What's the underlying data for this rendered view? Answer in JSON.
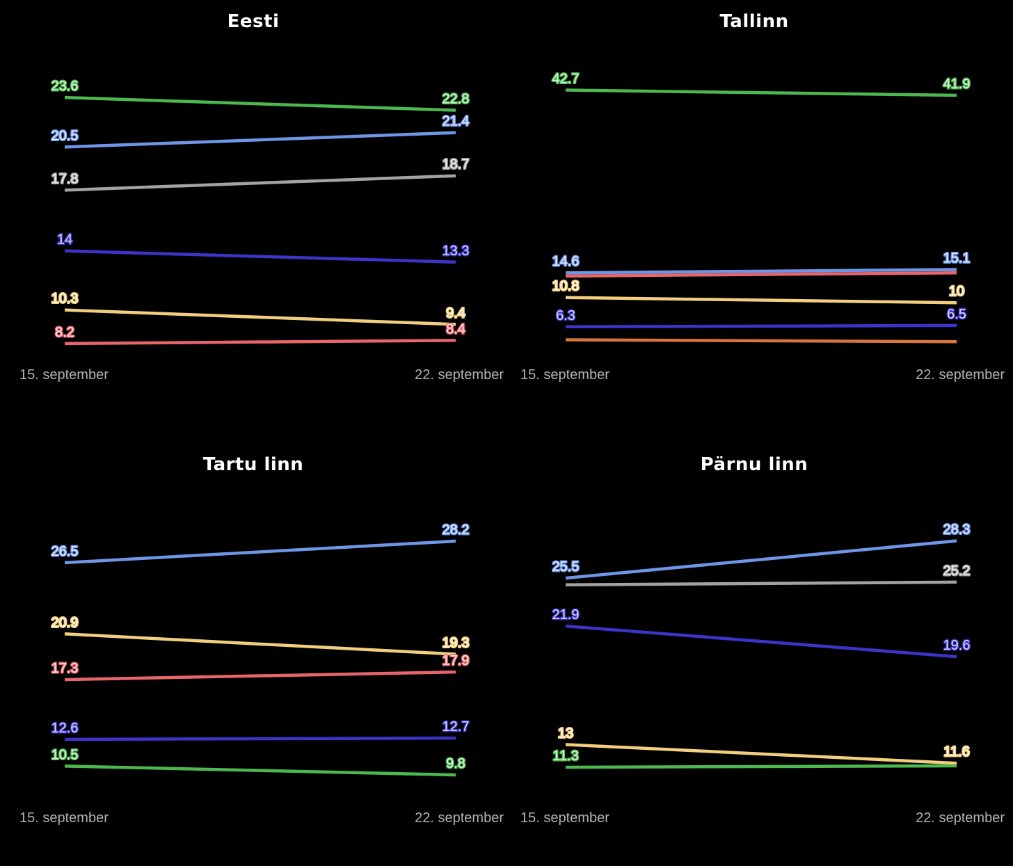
{
  "x_labels": [
    "15. september",
    "22. september"
  ],
  "colors": {
    "green": "#4cb84f",
    "blue": "#6f96e6",
    "gray": "#a3a3a3",
    "indigo": "#3a35c8",
    "yellow": "#f2cf7e",
    "red": "#e8666b",
    "orange": "#d8743c"
  },
  "chart_data": [
    {
      "type": "line",
      "title": "Eesti",
      "categories": [
        "15. september",
        "22. september"
      ],
      "ylim": [
        7.5,
        25
      ],
      "series": [
        {
          "color": "green",
          "values": [
            23.6,
            22.8
          ],
          "labels": [
            "23.6",
            "22.8"
          ]
        },
        {
          "color": "blue",
          "values": [
            20.5,
            21.4
          ],
          "labels": [
            "20.5",
            "21.4"
          ]
        },
        {
          "color": "gray",
          "values": [
            17.8,
            18.7
          ],
          "labels": [
            "17.8",
            "18.7"
          ]
        },
        {
          "color": "indigo",
          "values": [
            14,
            13.3
          ],
          "labels": [
            "14",
            "13.3"
          ]
        },
        {
          "color": "yellow",
          "values": [
            10.3,
            9.4
          ],
          "labels": [
            "10.3",
            "9.4"
          ]
        },
        {
          "color": "red",
          "values": [
            8.2,
            8.4
          ],
          "labels": [
            "8.2",
            "8.4"
          ]
        }
      ]
    },
    {
      "type": "line",
      "title": "Tallinn",
      "categories": [
        "15. september",
        "22. september"
      ],
      "ylim": [
        2,
        45
      ],
      "series": [
        {
          "color": "green",
          "values": [
            42.7,
            41.9
          ],
          "labels": [
            "42.7",
            "41.9"
          ]
        },
        {
          "color": "blue",
          "values": [
            14.6,
            15.1
          ],
          "labels": [
            "14.6",
            "15.1"
          ]
        },
        {
          "color": "red",
          "values": [
            14.1,
            14.6
          ],
          "labels": [
            "",
            ""
          ]
        },
        {
          "color": "yellow",
          "values": [
            10.8,
            10
          ],
          "labels": [
            "10.8",
            "10"
          ]
        },
        {
          "color": "indigo",
          "values": [
            6.3,
            6.5
          ],
          "labels": [
            "6.3",
            "6.5"
          ]
        },
        {
          "color": "orange",
          "values": [
            4.3,
            4
          ],
          "labels": [
            "",
            ""
          ]
        }
      ]
    },
    {
      "type": "line",
      "title": "Tartu linn",
      "categories": [
        "15. september",
        "22. september"
      ],
      "ylim": [
        8,
        30
      ],
      "series": [
        {
          "color": "blue",
          "values": [
            26.5,
            28.2
          ],
          "labels": [
            "26.5",
            "28.2"
          ]
        },
        {
          "color": "yellow",
          "values": [
            20.9,
            19.3
          ],
          "labels": [
            "20.9",
            "19.3"
          ]
        },
        {
          "color": "red",
          "values": [
            17.3,
            17.9
          ],
          "labels": [
            "17.3",
            "17.9"
          ]
        },
        {
          "color": "indigo",
          "values": [
            12.6,
            12.7
          ],
          "labels": [
            "12.6",
            "12.7"
          ]
        },
        {
          "color": "green",
          "values": [
            10.5,
            9.8
          ],
          "labels": [
            "10.5",
            "9.8"
          ]
        }
      ]
    },
    {
      "type": "line",
      "title": "Pärnu linn",
      "categories": [
        "15. september",
        "22. september"
      ],
      "ylim": [
        9,
        30
      ],
      "series": [
        {
          "color": "blue",
          "values": [
            25.5,
            28.3
          ],
          "labels": [
            "25.5",
            "28.3"
          ]
        },
        {
          "color": "gray",
          "values": [
            25,
            25.2
          ],
          "labels": [
            "",
            "25.2"
          ]
        },
        {
          "color": "indigo",
          "values": [
            21.9,
            19.6
          ],
          "labels": [
            "21.9",
            "19.6"
          ]
        },
        {
          "color": "yellow",
          "values": [
            13,
            11.6
          ],
          "labels": [
            "13",
            "11.6"
          ]
        },
        {
          "color": "green",
          "values": [
            11.3,
            11.4
          ],
          "labels": [
            "11.3",
            ""
          ]
        }
      ]
    }
  ]
}
